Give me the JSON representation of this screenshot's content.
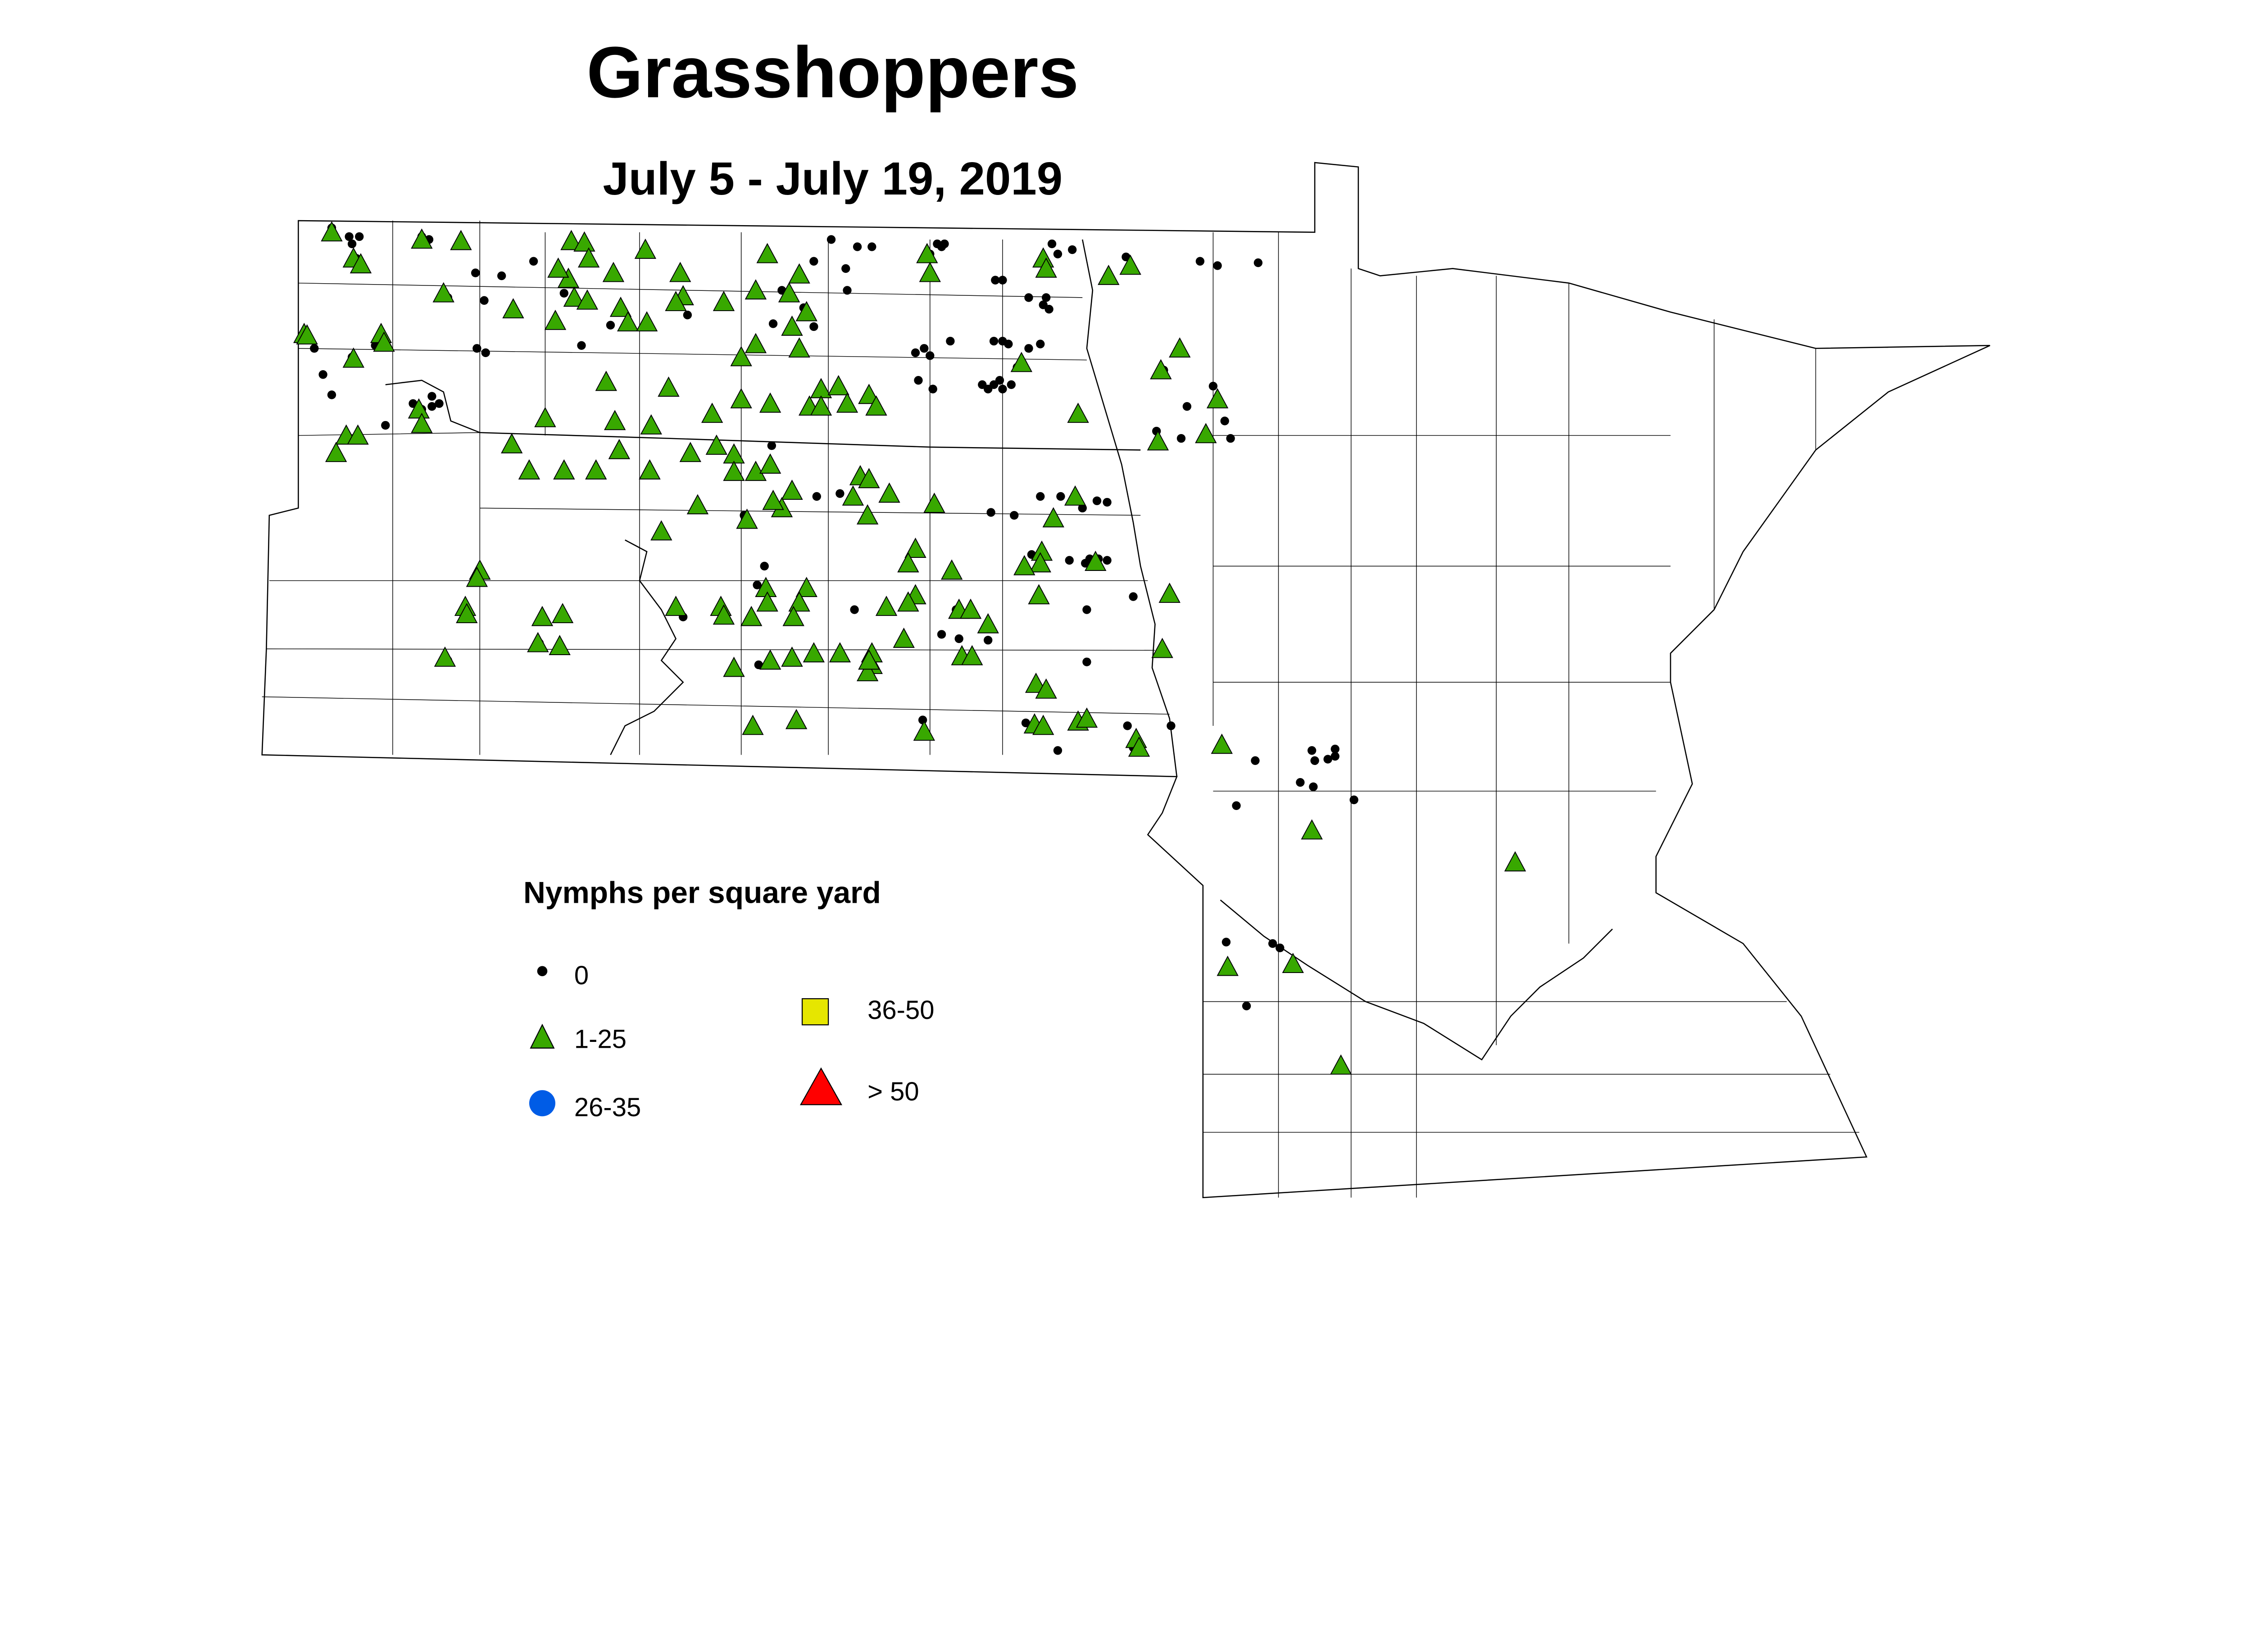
{
  "title": "Grasshoppers",
  "subtitle": "July 5 - July 19, 2019",
  "legend": {
    "title": "Nymphs per square yard",
    "items": [
      {
        "label": "0",
        "symbol": "small-dot",
        "color": "#000000"
      },
      {
        "label": "1-25",
        "symbol": "triangle",
        "color": "#38a800"
      },
      {
        "label": "26-35",
        "symbol": "circle",
        "color": "#005ce6"
      },
      {
        "label": "36-50",
        "symbol": "square",
        "color": "#e6e600"
      },
      {
        "label": "> 50",
        "symbol": "large-triangle",
        "color": "#ff0000"
      }
    ]
  }
}
